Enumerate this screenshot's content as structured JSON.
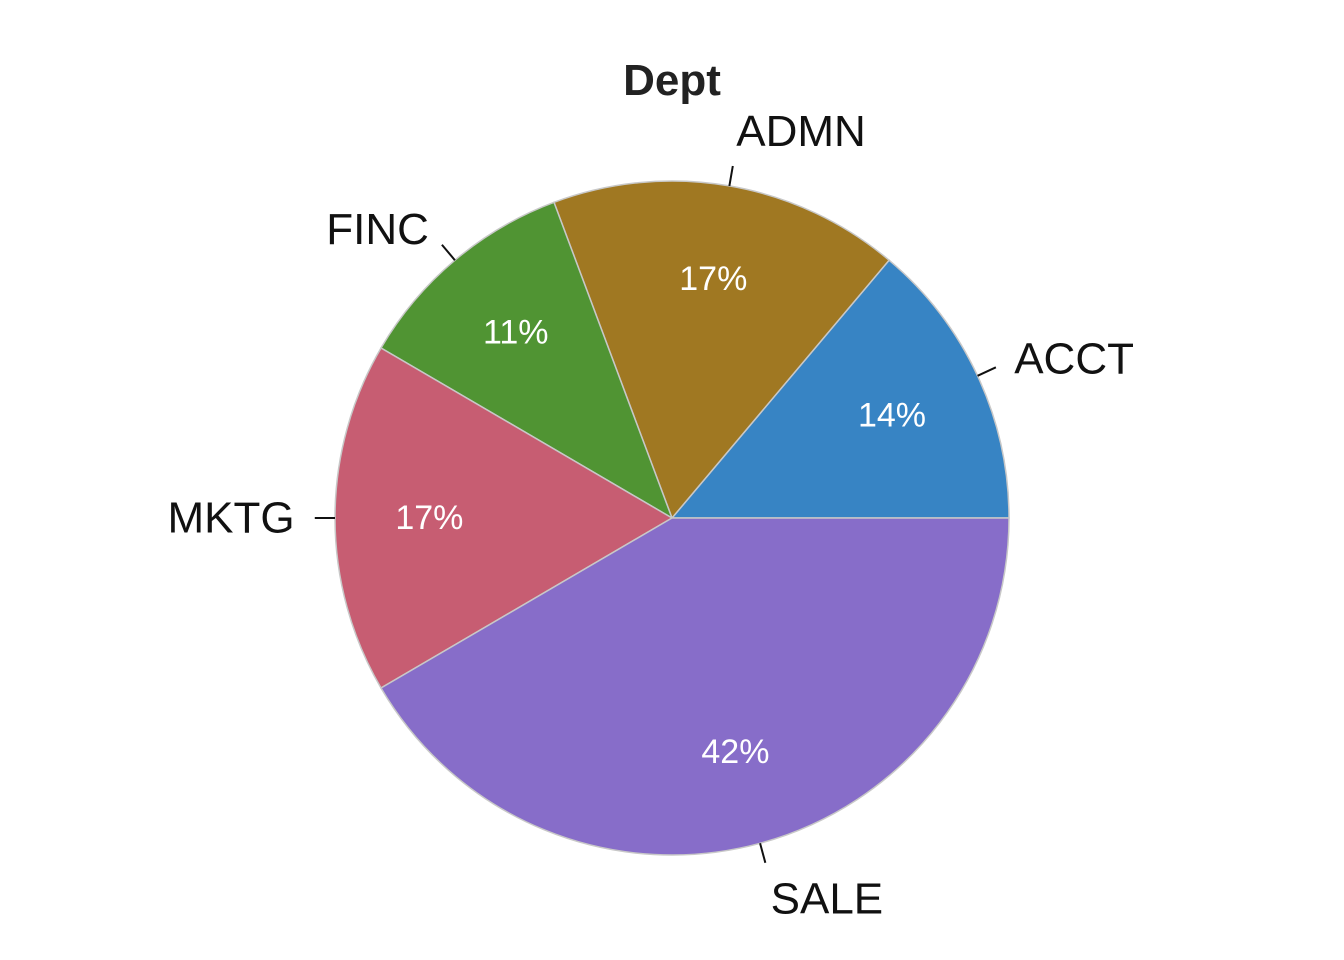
{
  "chart_data": {
    "type": "pie",
    "title": "Dept",
    "start_angle_deg": 0,
    "direction": "counterclockwise",
    "slices": [
      {
        "label": "ACCT",
        "value": 14,
        "pct_label": "14%",
        "color": "#3784C4"
      },
      {
        "label": "ADMN",
        "value": 17,
        "pct_label": "17%",
        "color": "#A07822"
      },
      {
        "label": "FINC",
        "value": 11,
        "pct_label": "11%",
        "color": "#509433"
      },
      {
        "label": "MKTG",
        "value": 17,
        "pct_label": "17%",
        "color": "#C75D72"
      },
      {
        "label": "SALE",
        "value": 42,
        "pct_label": "42%",
        "color": "#876DC9"
      }
    ]
  }
}
